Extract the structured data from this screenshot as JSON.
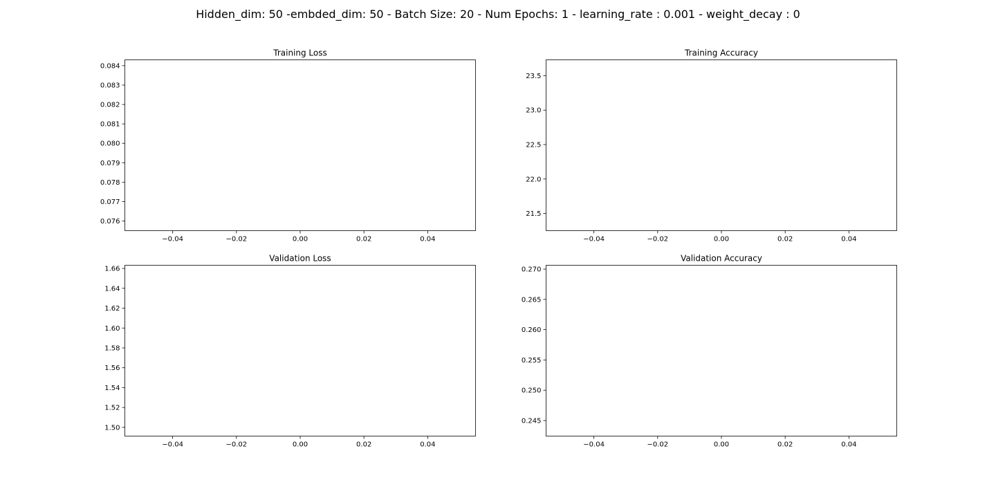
{
  "figure": {
    "suptitle": "Hidden_dim: 50 -embded_dim: 50 - Batch Size: 20 - Num Epochs: 1 - learning_rate : 0.001 - weight_decay : 0"
  },
  "chart_data": [
    {
      "type": "line",
      "title": "Training Loss",
      "xlabel": "",
      "ylabel": "",
      "xlim": [
        -0.055,
        0.055
      ],
      "ylim": [
        0.0755,
        0.0843
      ],
      "xticks": [
        -0.04,
        -0.02,
        0.0,
        0.02,
        0.04
      ],
      "xtick_labels": [
        "−0.04",
        "−0.02",
        "0.00",
        "0.02",
        "0.04"
      ],
      "yticks": [
        0.076,
        0.077,
        0.078,
        0.079,
        0.08,
        0.081,
        0.082,
        0.083,
        0.084
      ],
      "ytick_labels": [
        "0.076",
        "0.077",
        "0.078",
        "0.079",
        "0.080",
        "0.081",
        "0.082",
        "0.083",
        "0.084"
      ],
      "grid": false,
      "series": []
    },
    {
      "type": "line",
      "title": "Training Accuracy",
      "xlabel": "",
      "ylabel": "",
      "xlim": [
        -0.055,
        0.055
      ],
      "ylim": [
        21.25,
        23.73
      ],
      "xticks": [
        -0.04,
        -0.02,
        0.0,
        0.02,
        0.04
      ],
      "xtick_labels": [
        "−0.04",
        "−0.02",
        "0.00",
        "0.02",
        "0.04"
      ],
      "yticks": [
        21.5,
        22.0,
        22.5,
        23.0,
        23.5
      ],
      "ytick_labels": [
        "21.5",
        "22.0",
        "22.5",
        "23.0",
        "23.5"
      ],
      "grid": false,
      "series": []
    },
    {
      "type": "line",
      "title": "Validation Loss",
      "xlabel": "",
      "ylabel": "",
      "xlim": [
        -0.055,
        0.055
      ],
      "ylim": [
        1.4912,
        1.6632
      ],
      "xticks": [
        -0.04,
        -0.02,
        0.0,
        0.02,
        0.04
      ],
      "xtick_labels": [
        "−0.04",
        "−0.02",
        "0.00",
        "0.02",
        "0.04"
      ],
      "yticks": [
        1.5,
        1.52,
        1.54,
        1.56,
        1.58,
        1.6,
        1.62,
        1.64,
        1.66
      ],
      "ytick_labels": [
        "1.50",
        "1.52",
        "1.54",
        "1.56",
        "1.58",
        "1.60",
        "1.62",
        "1.64",
        "1.66"
      ],
      "grid": false,
      "series": []
    },
    {
      "type": "line",
      "title": "Validation Accuracy",
      "xlabel": "",
      "ylabel": "",
      "xlim": [
        -0.055,
        0.055
      ],
      "ylim": [
        0.24243,
        0.27063
      ],
      "xticks": [
        -0.04,
        -0.02,
        0.0,
        0.02,
        0.04
      ],
      "xtick_labels": [
        "−0.04",
        "−0.02",
        "0.00",
        "0.02",
        "0.04"
      ],
      "yticks": [
        0.245,
        0.25,
        0.255,
        0.26,
        0.265,
        0.27
      ],
      "ytick_labels": [
        "0.245",
        "0.250",
        "0.255",
        "0.260",
        "0.265",
        "0.270"
      ],
      "grid": false,
      "series": []
    }
  ]
}
